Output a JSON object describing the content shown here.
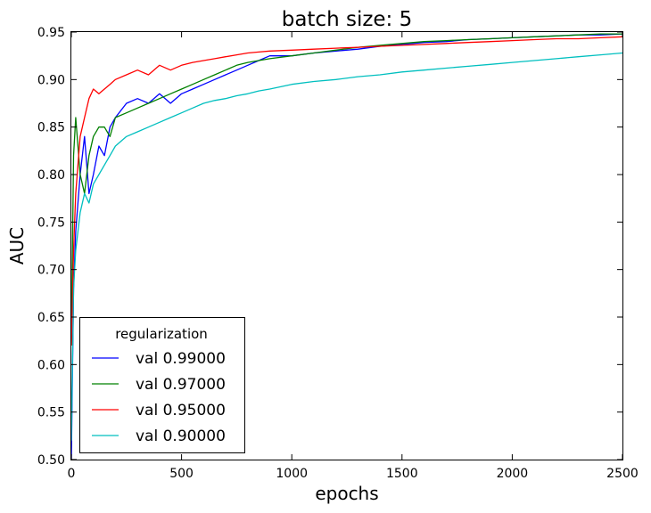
{
  "chart_data": {
    "type": "line",
    "title": "batch size: 5",
    "xlabel": "epochs",
    "ylabel": "AUC",
    "xlim": [
      0,
      2500
    ],
    "ylim": [
      0.5,
      0.95
    ],
    "xticks": [
      0,
      500,
      1000,
      1500,
      2000,
      2500
    ],
    "yticks": [
      0.5,
      0.55,
      0.6,
      0.65,
      0.7,
      0.75,
      0.8,
      0.85,
      0.9,
      0.95
    ],
    "xtick_labels": [
      "0",
      "500",
      "1000",
      "1500",
      "2000",
      "2500"
    ],
    "ytick_labels": [
      "0.50",
      "0.55",
      "0.60",
      "0.65",
      "0.70",
      "0.75",
      "0.80",
      "0.85",
      "0.90",
      "0.95"
    ],
    "grid": false,
    "legend": {
      "title": "regularization",
      "position": "lower-left"
    },
    "series": [
      {
        "name": "val 0.99000",
        "color": "#0000ff",
        "x": [
          0,
          10,
          20,
          40,
          60,
          80,
          100,
          125,
          150,
          175,
          200,
          250,
          300,
          350,
          400,
          450,
          500,
          550,
          600,
          650,
          700,
          750,
          800,
          850,
          900,
          1000,
          1100,
          1200,
          1300,
          1400,
          1500,
          1600,
          1700,
          1800,
          1900,
          2000,
          2100,
          2200,
          2300,
          2400,
          2500
        ],
        "y": [
          0.5,
          0.68,
          0.74,
          0.8,
          0.84,
          0.78,
          0.8,
          0.83,
          0.82,
          0.85,
          0.86,
          0.875,
          0.88,
          0.875,
          0.885,
          0.875,
          0.885,
          0.89,
          0.895,
          0.9,
          0.905,
          0.91,
          0.915,
          0.92,
          0.925,
          0.925,
          0.928,
          0.93,
          0.932,
          0.935,
          0.937,
          0.939,
          0.94,
          0.942,
          0.943,
          0.944,
          0.945,
          0.946,
          0.947,
          0.947,
          0.948
        ]
      },
      {
        "name": "val 0.97000",
        "color": "#008000",
        "x": [
          0,
          10,
          20,
          40,
          60,
          80,
          100,
          125,
          150,
          175,
          200,
          250,
          300,
          350,
          400,
          450,
          500,
          550,
          600,
          650,
          700,
          750,
          800,
          850,
          900,
          1000,
          1100,
          1200,
          1300,
          1400,
          1500,
          1600,
          1700,
          1800,
          1900,
          2000,
          2100,
          2200,
          2300,
          2400,
          2500
        ],
        "y": [
          0.62,
          0.82,
          0.86,
          0.8,
          0.78,
          0.82,
          0.84,
          0.85,
          0.85,
          0.84,
          0.86,
          0.865,
          0.87,
          0.875,
          0.88,
          0.885,
          0.89,
          0.895,
          0.9,
          0.905,
          0.91,
          0.915,
          0.918,
          0.92,
          0.922,
          0.925,
          0.928,
          0.931,
          0.934,
          0.936,
          0.938,
          0.94,
          0.941,
          0.942,
          0.943,
          0.944,
          0.945,
          0.946,
          0.947,
          0.948,
          0.948
        ]
      },
      {
        "name": "val 0.95000",
        "color": "#ff0000",
        "x": [
          0,
          10,
          20,
          40,
          60,
          80,
          100,
          125,
          150,
          175,
          200,
          250,
          300,
          350,
          400,
          450,
          500,
          550,
          600,
          650,
          700,
          750,
          800,
          850,
          900,
          1000,
          1100,
          1200,
          1300,
          1400,
          1500,
          1600,
          1700,
          1800,
          1900,
          2000,
          2100,
          2200,
          2300,
          2400,
          2500
        ],
        "y": [
          0.62,
          0.72,
          0.78,
          0.84,
          0.86,
          0.88,
          0.89,
          0.885,
          0.89,
          0.895,
          0.9,
          0.905,
          0.91,
          0.905,
          0.915,
          0.91,
          0.915,
          0.918,
          0.92,
          0.922,
          0.924,
          0.926,
          0.928,
          0.929,
          0.93,
          0.931,
          0.932,
          0.933,
          0.934,
          0.935,
          0.936,
          0.937,
          0.938,
          0.939,
          0.94,
          0.941,
          0.942,
          0.943,
          0.943,
          0.944,
          0.945
        ]
      },
      {
        "name": "val 0.90000",
        "color": "#00bfbf",
        "x": [
          0,
          10,
          20,
          40,
          60,
          80,
          100,
          125,
          150,
          175,
          200,
          250,
          300,
          350,
          400,
          450,
          500,
          550,
          600,
          650,
          700,
          750,
          800,
          850,
          900,
          1000,
          1100,
          1200,
          1300,
          1400,
          1500,
          1600,
          1700,
          1800,
          1900,
          2000,
          2100,
          2200,
          2300,
          2400,
          2500
        ],
        "y": [
          0.52,
          0.68,
          0.72,
          0.76,
          0.78,
          0.77,
          0.79,
          0.8,
          0.81,
          0.82,
          0.83,
          0.84,
          0.845,
          0.85,
          0.855,
          0.86,
          0.865,
          0.87,
          0.875,
          0.878,
          0.88,
          0.883,
          0.885,
          0.888,
          0.89,
          0.895,
          0.898,
          0.9,
          0.903,
          0.905,
          0.908,
          0.91,
          0.912,
          0.914,
          0.916,
          0.918,
          0.92,
          0.922,
          0.924,
          0.926,
          0.928
        ]
      }
    ]
  }
}
